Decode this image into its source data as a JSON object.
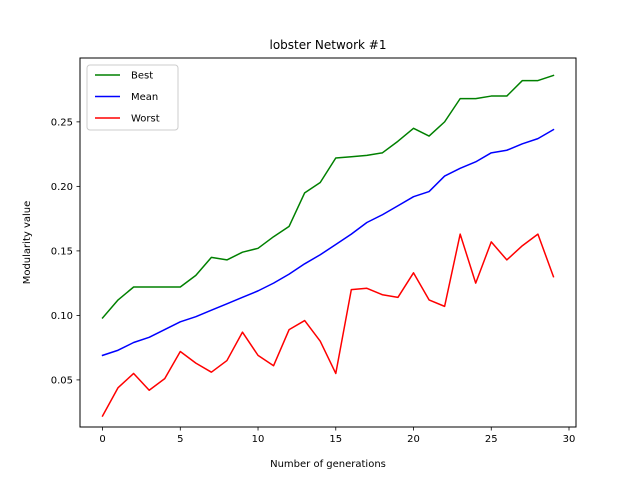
{
  "chart_data": {
    "type": "line",
    "title": "lobster Network #1",
    "xlabel": "Number of generations",
    "ylabel": "Modularity value",
    "xlim": [
      -1.45,
      30.45
    ],
    "ylim": [
      0.0135,
      0.2995
    ],
    "xticks": [
      0,
      5,
      10,
      15,
      20,
      25,
      30
    ],
    "xtick_labels": [
      "0",
      "5",
      "10",
      "15",
      "20",
      "25",
      "30"
    ],
    "yticks": [
      0.05,
      0.1,
      0.15,
      0.2,
      0.25
    ],
    "ytick_labels": [
      "0.05",
      "0.10",
      "0.15",
      "0.20",
      "0.25"
    ],
    "grid": false,
    "legend_position": "top-left",
    "x": [
      0,
      1,
      2,
      3,
      4,
      5,
      6,
      7,
      8,
      9,
      10,
      11,
      12,
      13,
      14,
      15,
      16,
      17,
      18,
      19,
      20,
      21,
      22,
      23,
      24,
      25,
      26,
      27,
      28,
      29
    ],
    "series": [
      {
        "name": "Best",
        "color": "#008000",
        "values": [
          0.098,
          0.112,
          0.122,
          0.122,
          0.122,
          0.122,
          0.131,
          0.145,
          0.143,
          0.149,
          0.152,
          0.161,
          0.169,
          0.195,
          0.203,
          0.222,
          0.223,
          0.224,
          0.226,
          0.235,
          0.245,
          0.239,
          0.25,
          0.268,
          0.268,
          0.27,
          0.27,
          0.282,
          0.282,
          0.286
        ]
      },
      {
        "name": "Mean",
        "color": "#0000ff",
        "values": [
          0.069,
          0.073,
          0.079,
          0.083,
          0.089,
          0.095,
          0.099,
          0.104,
          0.109,
          0.114,
          0.119,
          0.125,
          0.132,
          0.14,
          0.147,
          0.155,
          0.163,
          0.172,
          0.178,
          0.185,
          0.192,
          0.196,
          0.208,
          0.214,
          0.219,
          0.226,
          0.228,
          0.233,
          0.237,
          0.244
        ]
      },
      {
        "name": "Worst",
        "color": "#ff0000",
        "values": [
          0.022,
          0.044,
          0.055,
          0.042,
          0.051,
          0.072,
          0.063,
          0.056,
          0.065,
          0.087,
          0.069,
          0.061,
          0.089,
          0.096,
          0.08,
          0.055,
          0.12,
          0.121,
          0.116,
          0.114,
          0.133,
          0.112,
          0.107,
          0.163,
          0.125,
          0.157,
          0.143,
          0.154,
          0.163,
          0.13
        ]
      }
    ]
  }
}
